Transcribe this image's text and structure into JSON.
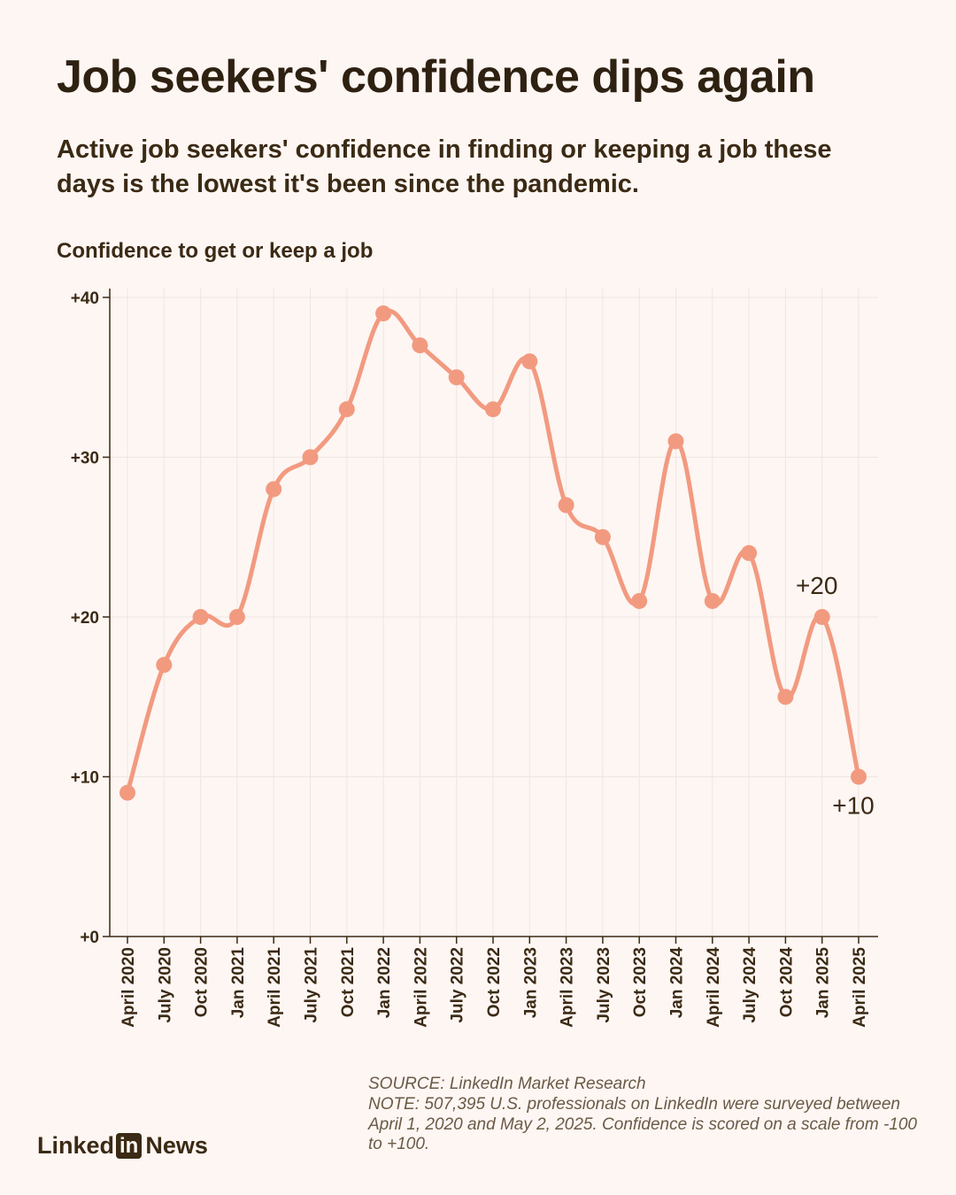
{
  "title": "Job seekers' confidence dips again",
  "subtitle": "Active job seekers' confidence in finding or keeping a job these days is the lowest it's been since the pandemic.",
  "chart_label": "Confidence to get or keep a job",
  "source": "SOURCE: LinkedIn Market Research",
  "note": "NOTE: 507,395 U.S. professionals on LinkedIn were surveyed between April 1, 2020 and May 2, 2025. Confidence is scored on a scale from -100 to +100.",
  "logo": {
    "prefix": "Linked",
    "box": "in",
    "suffix": "News"
  },
  "colors": {
    "line": "#f29a80",
    "text": "#3b2a14",
    "background": "#fdf6f3",
    "grid": "#f0e6e0"
  },
  "chart_data": {
    "type": "line",
    "categories": [
      "April 2020",
      "July 2020",
      "Oct 2020",
      "Jan 2021",
      "April 2021",
      "July 2021",
      "Oct 2021",
      "Jan 2022",
      "April 2022",
      "July 2022",
      "Oct 2022",
      "Jan 2023",
      "April 2023",
      "July 2023",
      "Oct 2023",
      "Jan 2024",
      "April 2024",
      "July 2024",
      "Oct 2024",
      "Jan 2025",
      "April 2025"
    ],
    "values": [
      9,
      17,
      20,
      20,
      28,
      30,
      33,
      39,
      37,
      35,
      33,
      36,
      27,
      25,
      21,
      31,
      21,
      24,
      15,
      20,
      10
    ],
    "ylim": [
      0,
      40
    ],
    "yticks": [
      0,
      10,
      20,
      30,
      40
    ],
    "ytick_labels": [
      "+0",
      "+10",
      "+20",
      "+30",
      "+40"
    ],
    "annotations": [
      {
        "category": "Jan 2025",
        "value": 20,
        "text": "+20",
        "placement": "above"
      },
      {
        "category": "April 2025",
        "value": 10,
        "text": "+10",
        "placement": "below"
      }
    ],
    "grid": true,
    "xlabel": "",
    "ylabel": ""
  }
}
